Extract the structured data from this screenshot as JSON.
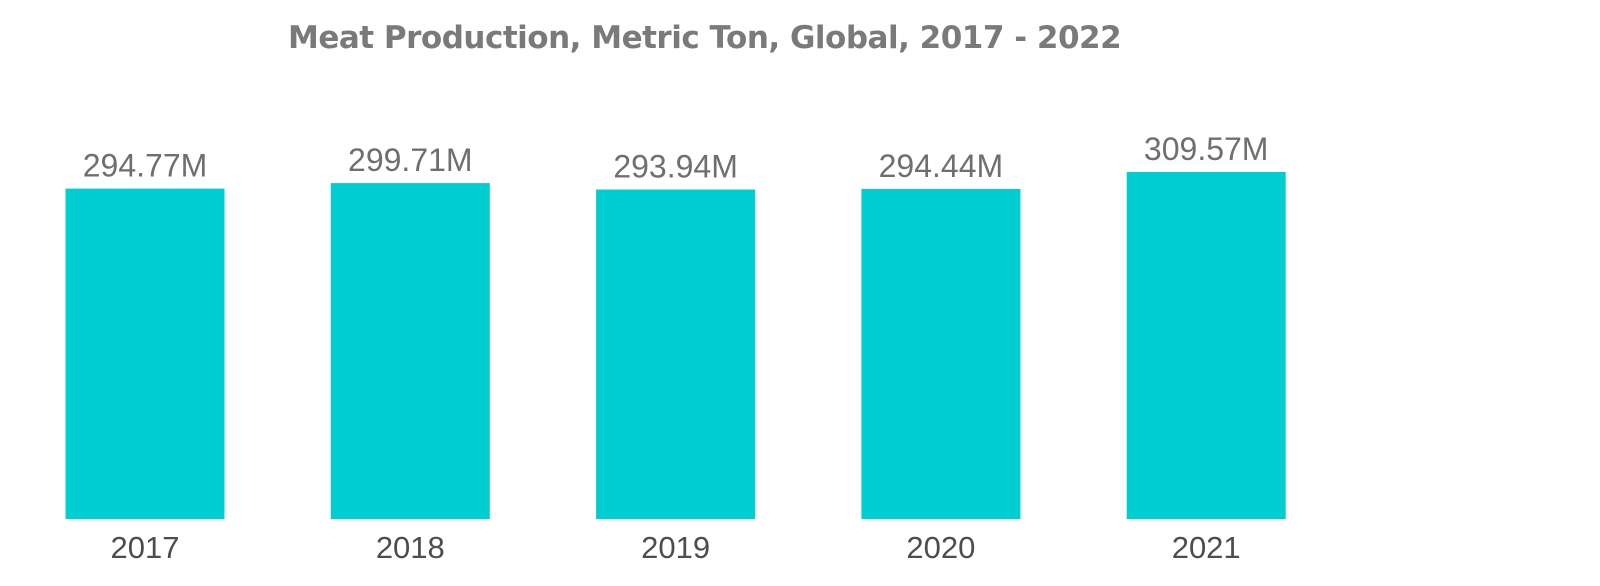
{
  "chart_data": {
    "type": "bar",
    "title": "Meat Production, Metric Ton, Global, 2017 - 2022",
    "categories": [
      "2017",
      "2018",
      "2019",
      "2020",
      "2021"
    ],
    "values": [
      294.77,
      299.71,
      293.94,
      294.44,
      309.57
    ],
    "value_labels": [
      "294.77M",
      "299.71M",
      "293.94M",
      "294.44M",
      "309.57M"
    ],
    "xlabel": "",
    "ylabel": "",
    "ylim": [
      0,
      309.57
    ],
    "grid": false,
    "legend": "none",
    "colors": {
      "bar": "#00ced1"
    }
  }
}
